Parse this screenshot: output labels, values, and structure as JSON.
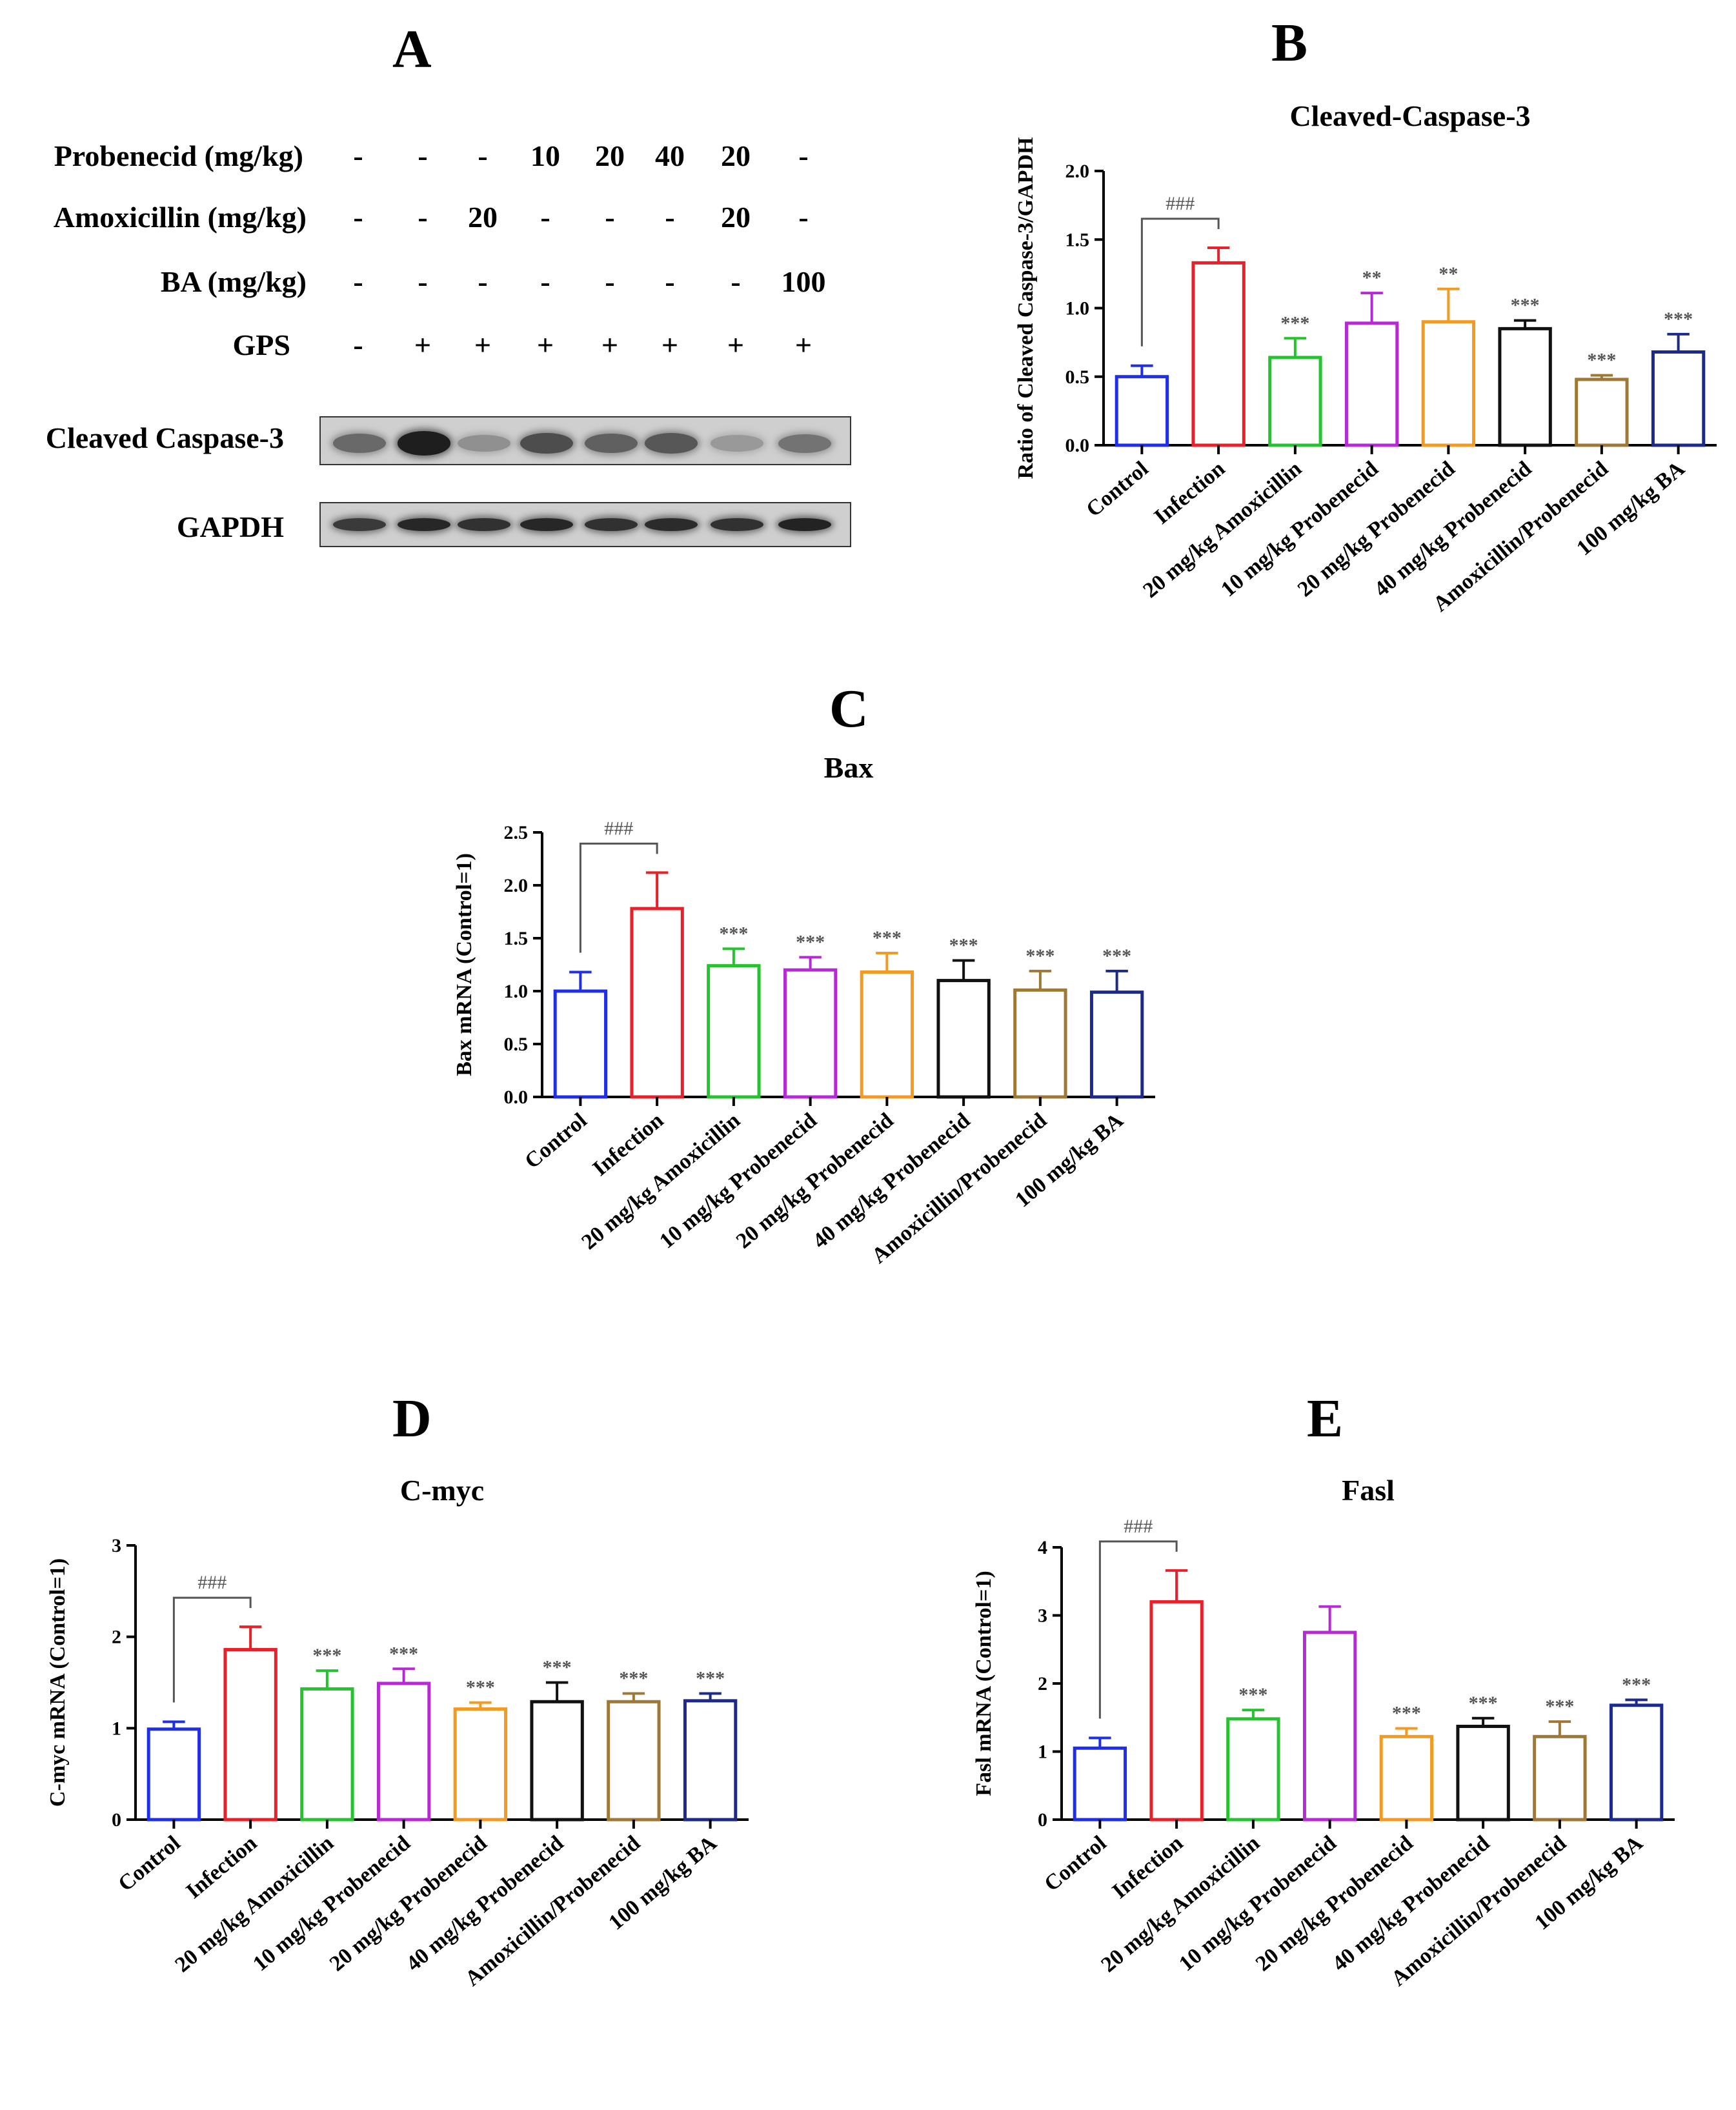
{
  "panels": {
    "A": "A",
    "B": "B",
    "C": "C",
    "D": "D",
    "E": "E"
  },
  "treatment_table": {
    "rows": [
      {
        "label": "Probenecid (mg/kg)",
        "values": [
          "-",
          "-",
          "-",
          "10",
          "20",
          "40",
          "20",
          "-"
        ]
      },
      {
        "label": "Amoxicillin (mg/kg)",
        "values": [
          "-",
          "-",
          "20",
          "-",
          "-",
          "-",
          "20",
          "-"
        ]
      },
      {
        "label": "BA (mg/kg)",
        "values": [
          "-",
          "-",
          "-",
          "-",
          "-",
          "-",
          "-",
          "100"
        ]
      },
      {
        "label": "GPS",
        "values": [
          "-",
          "+",
          "+",
          "+",
          "+",
          "+",
          "+",
          "+"
        ]
      }
    ]
  },
  "blots": [
    {
      "label": "Cleaved Caspase-3",
      "intensity": [
        0.55,
        0.95,
        0.35,
        0.7,
        0.6,
        0.65,
        0.3,
        0.5
      ]
    },
    {
      "label": "GAPDH",
      "intensity": [
        0.8,
        0.9,
        0.85,
        0.9,
        0.85,
        0.88,
        0.85,
        0.92
      ]
    }
  ],
  "chart_data": [
    {
      "id": "B",
      "type": "bar",
      "title": "Cleaved-Caspase-3",
      "ylabel": "Ratio of Cleaved Caspase-3/GAPDH",
      "ylim": [
        0,
        2.0
      ],
      "yticks": [
        "0.0",
        "0.5",
        "1.0",
        "1.5",
        "2.0"
      ],
      "ytick_values": [
        0,
        0.5,
        1.0,
        1.5,
        2.0
      ],
      "categories": [
        "Control",
        "Infection",
        "20 mg/kg Amoxicillin",
        "10 mg/kg Probenecid",
        "20 mg/kg Probenecid",
        "40 mg/kg Probenecid",
        "Amoxicillin/Probenecid",
        "100 mg/kg BA"
      ],
      "values": [
        0.5,
        1.33,
        0.64,
        0.89,
        0.9,
        0.85,
        0.48,
        0.68
      ],
      "errors": [
        0.08,
        0.11,
        0.14,
        0.22,
        0.24,
        0.06,
        0.03,
        0.13
      ],
      "sig": [
        "",
        "",
        "***",
        "**",
        "**",
        "***",
        "***",
        "***"
      ],
      "bracket": "###",
      "colors": [
        "#1f2ee8",
        "#e8202a",
        "#27c22f",
        "#b62ad6",
        "#f29a21",
        "#111111",
        "#a07836",
        "#1c2a8c"
      ]
    },
    {
      "id": "C",
      "type": "bar",
      "title": "Bax",
      "ylabel": "Bax mRNA (Control=1)",
      "ylim": [
        0,
        2.5
      ],
      "yticks": [
        "0.0",
        "0.5",
        "1.0",
        "1.5",
        "2.0",
        "2.5"
      ],
      "ytick_values": [
        0,
        0.5,
        1.0,
        1.5,
        2.0,
        2.5
      ],
      "categories": [
        "Control",
        "Infection",
        "20 mg/kg Amoxicillin",
        "10 mg/kg Probenecid",
        "20 mg/kg Probenecid",
        "40 mg/kg Probenecid",
        "Amoxicillin/Probenecid",
        "100 mg/kg BA"
      ],
      "values": [
        1.0,
        1.78,
        1.24,
        1.2,
        1.18,
        1.1,
        1.01,
        0.99
      ],
      "errors": [
        0.18,
        0.34,
        0.16,
        0.12,
        0.18,
        0.19,
        0.18,
        0.2
      ],
      "sig": [
        "",
        "",
        "***",
        "***",
        "***",
        "***",
        "***",
        "***"
      ],
      "bracket": "###",
      "colors": [
        "#1f2ee8",
        "#e8202a",
        "#27c22f",
        "#b62ad6",
        "#f29a21",
        "#111111",
        "#a07836",
        "#1c2a8c"
      ]
    },
    {
      "id": "D",
      "type": "bar",
      "title": "C-myc",
      "ylabel": "C-myc mRNA (Control=1)",
      "ylim": [
        0,
        3
      ],
      "yticks": [
        "0",
        "1",
        "2",
        "3"
      ],
      "ytick_values": [
        0,
        1,
        2,
        3
      ],
      "categories": [
        "Control",
        "Infection",
        "20 mg/kg Amoxicillin",
        "10 mg/kg Probenecid",
        "20 mg/kg Probenecid",
        "40 mg/kg Probenecid",
        "Amoxicillin/Probenecid",
        "100 mg/kg BA"
      ],
      "values": [
        0.99,
        1.86,
        1.43,
        1.49,
        1.21,
        1.29,
        1.29,
        1.3
      ],
      "errors": [
        0.08,
        0.25,
        0.2,
        0.16,
        0.07,
        0.21,
        0.09,
        0.08
      ],
      "sig": [
        "",
        "",
        "***",
        "***",
        "***",
        "***",
        "***",
        "***"
      ],
      "bracket": "###",
      "colors": [
        "#1f2ee8",
        "#e8202a",
        "#27c22f",
        "#b62ad6",
        "#f29a21",
        "#111111",
        "#a07836",
        "#1c2a8c"
      ]
    },
    {
      "id": "E",
      "type": "bar",
      "title": "Fasl",
      "ylabel": "Fasl mRNA (Control=1)",
      "ylim": [
        0,
        4
      ],
      "yticks": [
        "0",
        "1",
        "2",
        "3",
        "4"
      ],
      "ytick_values": [
        0,
        1,
        2,
        3,
        4
      ],
      "categories": [
        "Control",
        "Infection",
        "20 mg/kg Amoxicillin",
        "10 mg/kg Probenecid",
        "20 mg/kg Probenecid",
        "40 mg/kg Probenecid",
        "Amoxicillin/Probenecid",
        "100 mg/kg BA"
      ],
      "values": [
        1.05,
        3.2,
        1.48,
        2.75,
        1.22,
        1.37,
        1.22,
        1.68
      ],
      "errors": [
        0.15,
        0.46,
        0.13,
        0.38,
        0.12,
        0.12,
        0.22,
        0.08
      ],
      "sig": [
        "",
        "",
        "***",
        "",
        "***",
        "***",
        "***",
        "***"
      ],
      "bracket": "###",
      "colors": [
        "#1f2ee8",
        "#e8202a",
        "#27c22f",
        "#b62ad6",
        "#f29a21",
        "#111111",
        "#a07836",
        "#1c2a8c"
      ]
    }
  ]
}
